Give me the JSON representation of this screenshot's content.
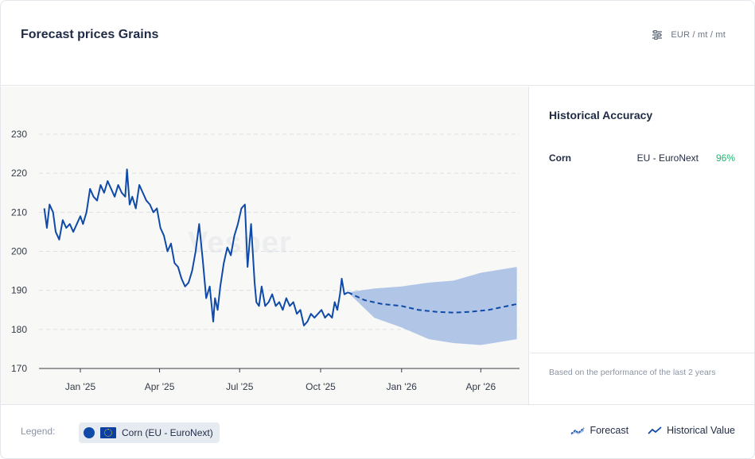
{
  "header": {
    "title": "Forecast prices Grains",
    "unit": "EUR / mt / mt",
    "unit_icon": "sliders-icon"
  },
  "watermark": "Vesper",
  "side": {
    "title": "Historical Accuracy",
    "rows": [
      {
        "name": "Corn",
        "market": "EU - EuroNext",
        "value": "96%"
      }
    ],
    "note": "Based on the performance of the last 2 years"
  },
  "footer": {
    "legend_label": "Legend:",
    "chip_label": "Corn (EU - EuroNext)",
    "forecast_label": "Forecast",
    "historical_label": "Historical Value"
  },
  "colors": {
    "line": "#0f4aa8",
    "band": "#a9c0e4",
    "accuracy": "#22b573"
  },
  "chart_data": {
    "type": "line",
    "x_axis": {
      "type": "date",
      "ticks": [
        "Jan '25",
        "Apr '25",
        "Jul '25",
        "Oct '25",
        "Jan '26",
        "Apr '26"
      ],
      "range": [
        "2024-11-15",
        "2026-05-15"
      ]
    },
    "y_axis": {
      "ticks": [
        170,
        180,
        190,
        200,
        210,
        220,
        230
      ],
      "ylim": [
        170,
        230
      ]
    },
    "grid": "horizontal-dashed",
    "series": [
      {
        "kind": "historical",
        "name": "Historical Value",
        "points": [
          [
            "2024-11-21",
            211
          ],
          [
            "2024-11-24",
            206
          ],
          [
            "2024-11-27",
            212
          ],
          [
            "2024-12-01",
            210
          ],
          [
            "2024-12-04",
            205
          ],
          [
            "2024-12-08",
            203
          ],
          [
            "2024-12-12",
            208
          ],
          [
            "2024-12-16",
            206
          ],
          [
            "2024-12-20",
            207
          ],
          [
            "2024-12-24",
            205
          ],
          [
            "2024-12-28",
            207
          ],
          [
            "2025-01-01",
            209
          ],
          [
            "2025-01-04",
            207
          ],
          [
            "2025-01-08",
            210
          ],
          [
            "2025-01-12",
            216
          ],
          [
            "2025-01-16",
            214
          ],
          [
            "2025-01-20",
            213
          ],
          [
            "2025-01-24",
            217
          ],
          [
            "2025-01-28",
            215
          ],
          [
            "2025-02-01",
            218
          ],
          [
            "2025-02-05",
            216
          ],
          [
            "2025-02-09",
            214
          ],
          [
            "2025-02-13",
            217
          ],
          [
            "2025-02-17",
            215
          ],
          [
            "2025-02-21",
            214
          ],
          [
            "2025-02-23",
            221
          ],
          [
            "2025-02-26",
            212
          ],
          [
            "2025-03-01",
            214
          ],
          [
            "2025-03-05",
            211
          ],
          [
            "2025-03-09",
            217
          ],
          [
            "2025-03-13",
            215
          ],
          [
            "2025-03-17",
            213
          ],
          [
            "2025-03-21",
            212
          ],
          [
            "2025-03-25",
            210
          ],
          [
            "2025-03-29",
            211
          ],
          [
            "2025-04-02",
            206
          ],
          [
            "2025-04-06",
            204
          ],
          [
            "2025-04-10",
            200
          ],
          [
            "2025-04-14",
            202
          ],
          [
            "2025-04-18",
            197
          ],
          [
            "2025-04-22",
            196
          ],
          [
            "2025-04-26",
            193
          ],
          [
            "2025-04-30",
            191
          ],
          [
            "2025-05-04",
            192
          ],
          [
            "2025-05-08",
            195
          ],
          [
            "2025-05-12",
            200
          ],
          [
            "2025-05-16",
            207
          ],
          [
            "2025-05-20",
            198
          ],
          [
            "2025-05-24",
            188
          ],
          [
            "2025-05-28",
            191
          ],
          [
            "2025-06-01",
            182
          ],
          [
            "2025-06-03",
            188
          ],
          [
            "2025-06-06",
            185
          ],
          [
            "2025-06-09",
            191
          ],
          [
            "2025-06-13",
            197
          ],
          [
            "2025-06-17",
            201
          ],
          [
            "2025-06-21",
            199
          ],
          [
            "2025-06-25",
            204
          ],
          [
            "2025-06-29",
            207
          ],
          [
            "2025-07-03",
            211
          ],
          [
            "2025-07-07",
            212
          ],
          [
            "2025-07-10",
            196
          ],
          [
            "2025-07-14",
            207
          ],
          [
            "2025-07-18",
            192
          ],
          [
            "2025-07-20",
            187
          ],
          [
            "2025-07-23",
            186
          ],
          [
            "2025-07-26",
            191
          ],
          [
            "2025-07-30",
            186
          ],
          [
            "2025-08-03",
            187
          ],
          [
            "2025-08-07",
            189
          ],
          [
            "2025-08-11",
            186
          ],
          [
            "2025-08-15",
            187
          ],
          [
            "2025-08-19",
            185
          ],
          [
            "2025-08-23",
            188
          ],
          [
            "2025-08-27",
            186
          ],
          [
            "2025-08-31",
            187
          ],
          [
            "2025-09-04",
            184
          ],
          [
            "2025-09-08",
            185
          ],
          [
            "2025-09-12",
            181
          ],
          [
            "2025-09-16",
            182
          ],
          [
            "2025-09-20",
            184
          ],
          [
            "2025-09-24",
            183
          ],
          [
            "2025-09-28",
            184
          ],
          [
            "2025-10-02",
            185
          ],
          [
            "2025-10-06",
            183
          ],
          [
            "2025-10-10",
            184
          ],
          [
            "2025-10-14",
            183
          ],
          [
            "2025-10-17",
            187
          ],
          [
            "2025-10-20",
            185
          ],
          [
            "2025-10-23",
            189
          ],
          [
            "2025-10-25",
            193
          ],
          [
            "2025-10-28",
            189
          ],
          [
            "2025-11-01",
            189.5
          ]
        ]
      },
      {
        "kind": "forecast",
        "name": "Forecast",
        "points": [
          [
            "2025-11-01",
            189.5
          ],
          [
            "2025-11-20",
            187.5
          ],
          [
            "2025-12-10",
            186.5
          ],
          [
            "2026-01-01",
            186
          ],
          [
            "2026-01-20",
            185
          ],
          [
            "2026-02-10",
            184.5
          ],
          [
            "2026-03-01",
            184.3
          ],
          [
            "2026-03-20",
            184.5
          ],
          [
            "2026-04-10",
            185
          ],
          [
            "2026-05-12",
            186.5
          ]
        ],
        "upper": [
          [
            "2025-11-01",
            189.5
          ],
          [
            "2025-12-01",
            190.5
          ],
          [
            "2026-01-01",
            191
          ],
          [
            "2026-02-01",
            192
          ],
          [
            "2026-03-01",
            192.5
          ],
          [
            "2026-04-01",
            194.5
          ],
          [
            "2026-05-12",
            196
          ]
        ],
        "lower": [
          [
            "2025-11-01",
            189.5
          ],
          [
            "2025-12-01",
            183
          ],
          [
            "2026-01-01",
            180.5
          ],
          [
            "2026-02-01",
            177.5
          ],
          [
            "2026-03-01",
            176.5
          ],
          [
            "2026-04-01",
            176
          ],
          [
            "2026-05-12",
            177.5
          ]
        ]
      }
    ]
  }
}
